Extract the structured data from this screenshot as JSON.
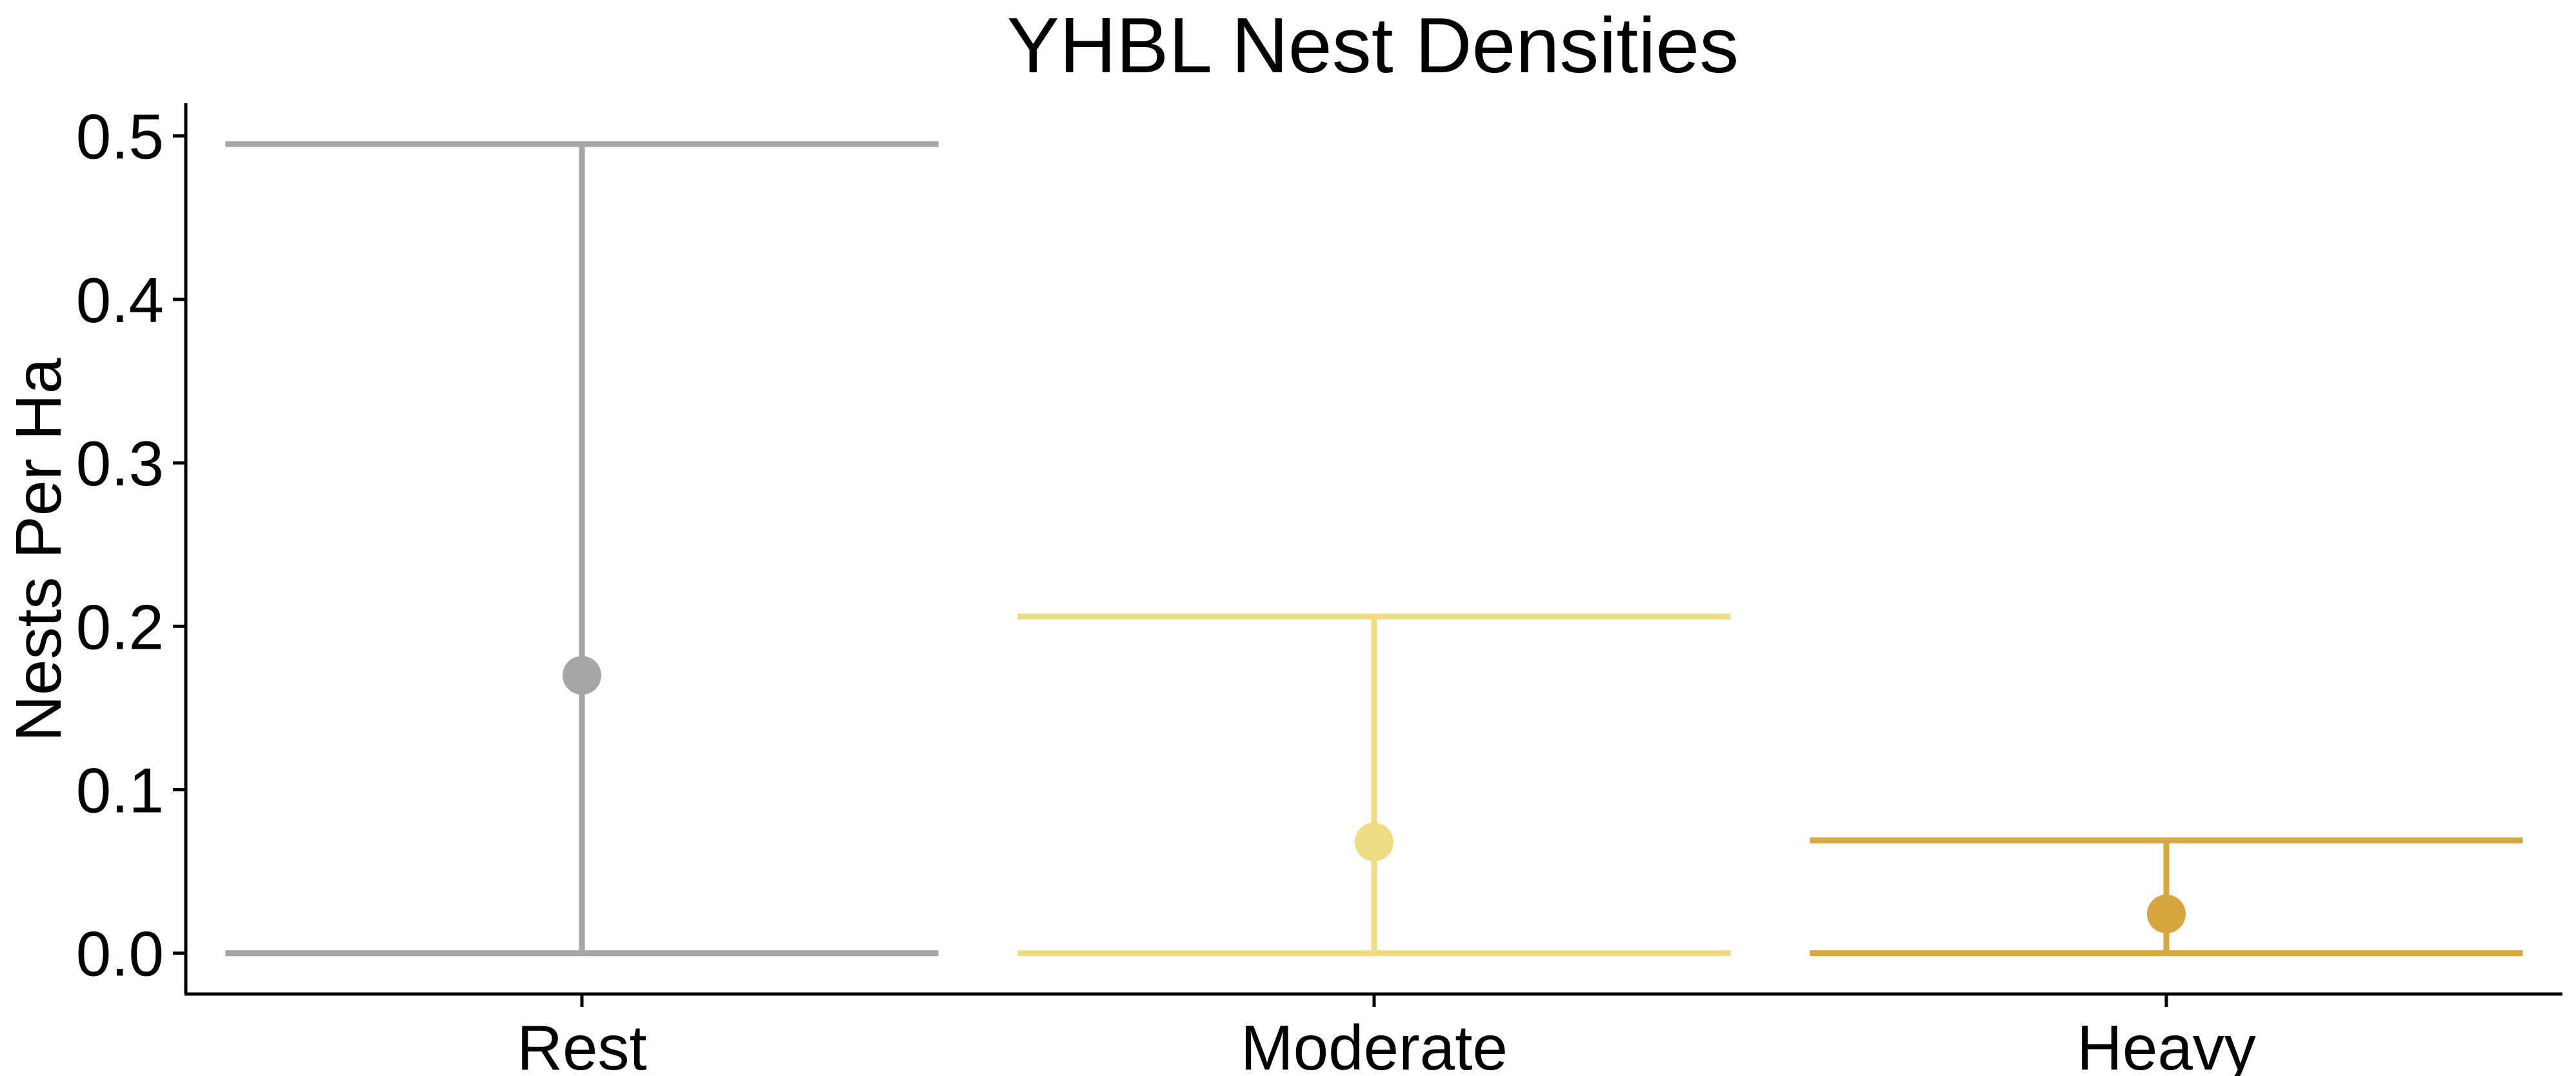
{
  "chart_data": {
    "type": "errorbar",
    "title": "YHBL Nest Densities",
    "xlabel": "",
    "ylabel": "Nests Per Ha",
    "categories": [
      "Rest",
      "Moderate",
      "Heavy"
    ],
    "values": [
      0.17,
      0.068,
      0.024
    ],
    "lower": [
      0.0,
      0.0,
      0.0
    ],
    "upper": [
      0.495,
      0.206,
      0.069
    ],
    "colors": [
      "#a6a6a6",
      "#efdc82",
      "#d6a73e"
    ],
    "ylim": [
      -0.025,
      0.52
    ],
    "yticks": [
      "0.0",
      "0.1",
      "0.2",
      "0.3",
      "0.4",
      "0.5"
    ],
    "ytick_values": [
      0.0,
      0.1,
      0.2,
      0.3,
      0.4,
      0.5
    ],
    "grid": false,
    "legend": "none"
  }
}
